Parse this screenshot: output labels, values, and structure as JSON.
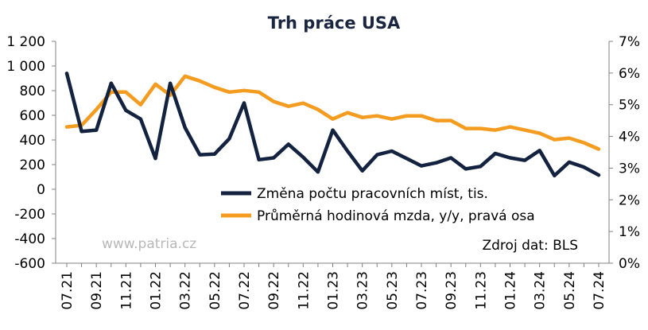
{
  "chart_data": {
    "type": "line",
    "title": "Trh práce USA",
    "x": [
      "07.21",
      "08.21",
      "09.21",
      "10.21",
      "11.21",
      "12.21",
      "01.22",
      "02.22",
      "03.22",
      "04.22",
      "05.22",
      "06.22",
      "07.22",
      "08.22",
      "09.22",
      "10.22",
      "11.22",
      "12.22",
      "01.23",
      "02.23",
      "03.23",
      "04.23",
      "05.23",
      "06.23",
      "07.23",
      "08.23",
      "09.23",
      "10.23",
      "11.23",
      "12.23",
      "01.24",
      "02.24",
      "03.24",
      "04.24",
      "05.24",
      "06.24",
      "07.24"
    ],
    "x_tick_labels": [
      "07.21",
      "09.21",
      "11.21",
      "01.22",
      "03.22",
      "05.22",
      "07.22",
      "09.22",
      "11.22",
      "01.23",
      "03.23",
      "05.23",
      "07.23",
      "09.23",
      "11.23",
      "01.24",
      "03.24",
      "05.24",
      "07.24"
    ],
    "series": [
      {
        "name": "Změna počtu pracovních míst, tis.",
        "axis": "left",
        "color": "#13223f",
        "values": [
          940,
          470,
          480,
          860,
          640,
          570,
          250,
          860,
          500,
          280,
          285,
          410,
          700,
          240,
          255,
          365,
          260,
          140,
          480,
          310,
          150,
          280,
          310,
          250,
          190,
          215,
          255,
          165,
          185,
          290,
          255,
          235,
          315,
          110,
          220,
          180,
          115
        ]
      },
      {
        "name": "Průměrná hodinová mzda, y/y, pravá osa",
        "axis": "right",
        "color": "#f39c1f",
        "values": [
          4.3,
          4.35,
          4.85,
          5.4,
          5.4,
          5.0,
          5.65,
          5.3,
          5.9,
          5.75,
          5.55,
          5.4,
          5.45,
          5.4,
          5.1,
          4.95,
          5.05,
          4.85,
          4.55,
          4.75,
          4.6,
          4.65,
          4.55,
          4.65,
          4.65,
          4.5,
          4.5,
          4.25,
          4.25,
          4.2,
          4.3,
          4.2,
          4.1,
          3.9,
          3.95,
          3.8,
          3.6
        ]
      }
    ],
    "y_left": {
      "min": -600,
      "max": 1200,
      "step": 200,
      "tick_labels": [
        "-600",
        "-400",
        "-200",
        "0",
        "200",
        "400",
        "600",
        "800",
        "1 000",
        "1 200"
      ]
    },
    "y_right": {
      "min": 0,
      "max": 7,
      "step": 1,
      "tick_labels": [
        "0%",
        "1%",
        "2%",
        "3%",
        "4%",
        "5%",
        "6%",
        "7%"
      ]
    },
    "grid": false,
    "legend_position": "center-right",
    "watermark": "www.patria.cz",
    "source": "Zdroj dat: BLS"
  }
}
